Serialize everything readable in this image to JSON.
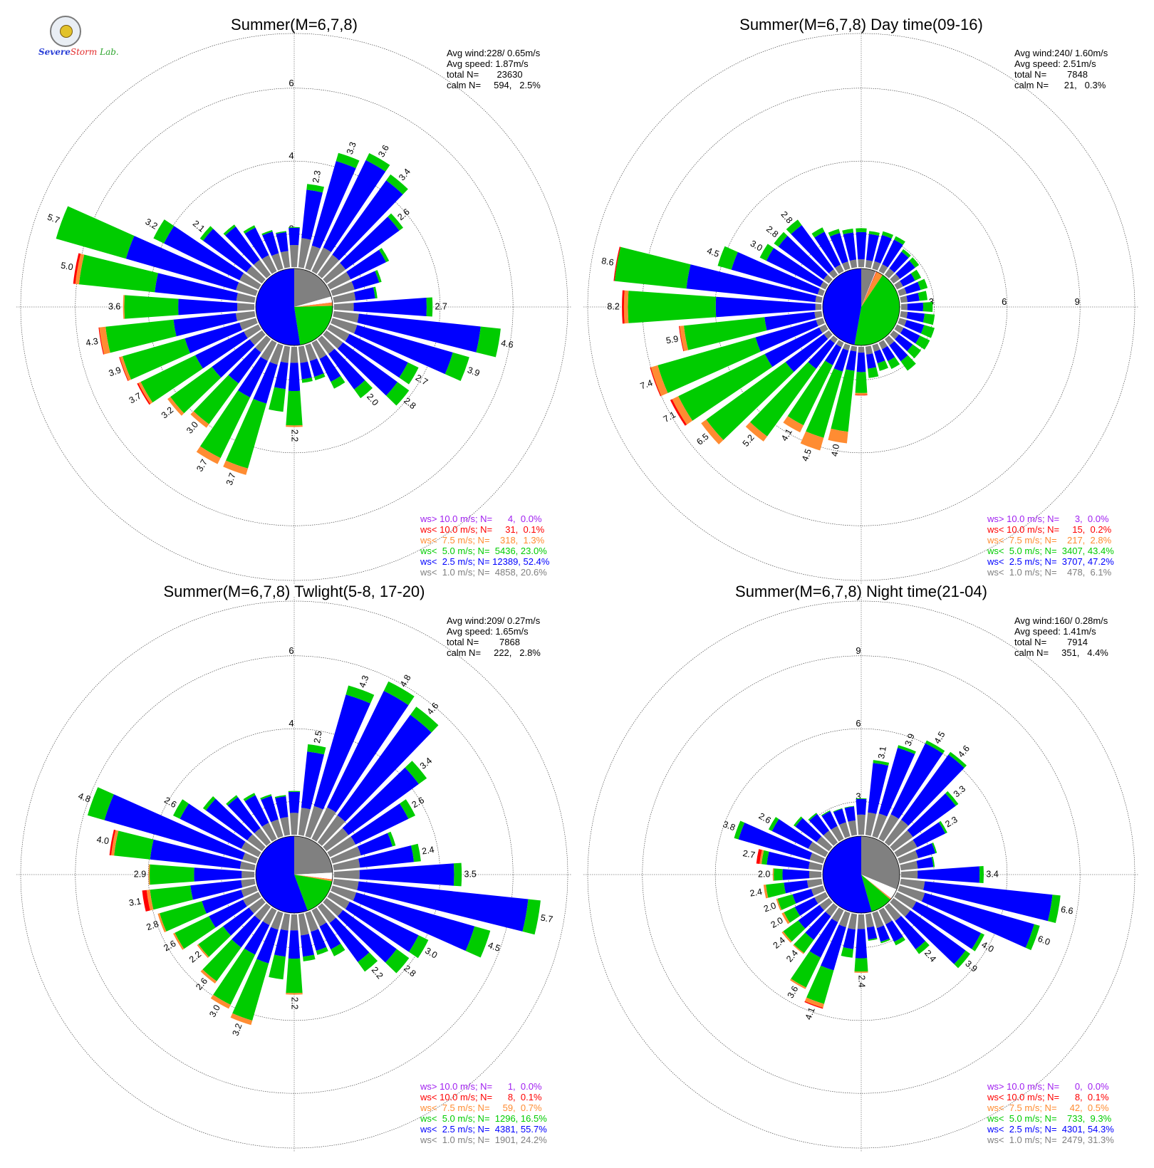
{
  "logo": {
    "text_severe": "Severe",
    "text_storm": "Storm",
    "text_lab": "Lab."
  },
  "colors": {
    "gt10": "#a020f0",
    "lt10": "#ff0000",
    "lt7_5": "#ff8c32",
    "lt5": "#00cc00",
    "lt2_5": "#0000ff",
    "lt1": "#808080"
  },
  "chart_data": [
    {
      "type": "windrose",
      "title": "Summer(M=6,7,8)",
      "rmax": 6,
      "ring_labels": [
        "2",
        "4",
        "6"
      ],
      "rings": [
        2,
        4,
        6
      ],
      "stats": [
        "Avg wind:228/ 0.65m/s",
        "Avg speed: 1.87m/s",
        "total N=       23630",
        "calm N=     594,   2.5%"
      ],
      "legend": [
        {
          "text": "ws> 10.0 m/s; N=      4,  0.0%",
          "color": "#a020f0"
        },
        {
          "text": "ws< 10.0 m/s; N=     31,  0.1%",
          "color": "#ff0000"
        },
        {
          "text": "ws<  7.5 m/s; N=    318,  1.3%",
          "color": "#ff8c32"
        },
        {
          "text": "ws<  5.0 m/s; N=  5436, 23.0%",
          "color": "#00cc00"
        },
        {
          "text": "ws<  2.5 m/s; N= 12389, 52.4%",
          "color": "#0000ff"
        },
        {
          "text": "ws<  1.0 m/s; N=  4858, 20.6%",
          "color": "#808080"
        }
      ],
      "center_pie": {
        "lt1": 20.6,
        "lt2_5": 52.4,
        "lt5": 23.0,
        "lt7_5": 1.3,
        "lt10": 0.1,
        "calm": 2.5
      },
      "directions_deg": [
        0,
        10,
        20,
        30,
        40,
        50,
        60,
        70,
        80,
        90,
        100,
        110,
        120,
        130,
        140,
        150,
        160,
        170,
        180,
        190,
        200,
        210,
        220,
        230,
        240,
        250,
        260,
        270,
        280,
        290,
        300,
        310,
        320,
        330,
        340,
        350
      ],
      "totals": [
        1.1,
        2.3,
        3.3,
        3.6,
        3.4,
        2.6,
        1.8,
        1.4,
        1.2,
        2.7,
        4.6,
        3.9,
        2.7,
        2.8,
        2.0,
        1.4,
        1.0,
        1.0,
        2.2,
        1.8,
        3.7,
        3.7,
        3.0,
        3.2,
        3.7,
        3.9,
        4.3,
        3.6,
        5.0,
        5.7,
        3.2,
        2.1,
        1.7,
        1.4,
        1.1,
        1.0
      ],
      "frac_gray": [
        0.55,
        0.35,
        0.2,
        0.2,
        0.2,
        0.25,
        0.35,
        0.45,
        0.5,
        0.2,
        0.15,
        0.18,
        0.22,
        0.2,
        0.25,
        0.35,
        0.45,
        0.45,
        0.2,
        0.25,
        0.15,
        0.15,
        0.15,
        0.13,
        0.12,
        0.12,
        0.12,
        0.13,
        0.1,
        0.1,
        0.18,
        0.25,
        0.3,
        0.35,
        0.4,
        0.45
      ],
      "frac_blue": [
        0.43,
        0.58,
        0.73,
        0.74,
        0.74,
        0.7,
        0.6,
        0.5,
        0.45,
        0.74,
        0.73,
        0.7,
        0.66,
        0.66,
        0.6,
        0.5,
        0.45,
        0.45,
        0.35,
        0.4,
        0.3,
        0.3,
        0.35,
        0.4,
        0.4,
        0.4,
        0.4,
        0.45,
        0.45,
        0.55,
        0.72,
        0.7,
        0.66,
        0.6,
        0.56,
        0.52
      ],
      "frac_orange": [
        0,
        0,
        0,
        0,
        0,
        0,
        0,
        0,
        0,
        0,
        0,
        0,
        0,
        0,
        0,
        0,
        0,
        0,
        0.02,
        0,
        0.05,
        0.05,
        0.04,
        0.03,
        0.02,
        0.02,
        0.04,
        0.01,
        0.02,
        0,
        0,
        0,
        0,
        0,
        0,
        0
      ],
      "frac_red": [
        0,
        0,
        0,
        0,
        0,
        0,
        0,
        0,
        0,
        0,
        0,
        0,
        0,
        0,
        0,
        0,
        0,
        0,
        0,
        0,
        0,
        0,
        0,
        0,
        0.01,
        0.005,
        0.005,
        0,
        0.012,
        0,
        0,
        0,
        0,
        0,
        0,
        0
      ],
      "labeled_directions": [
        10,
        20,
        30,
        40,
        50,
        90,
        100,
        110,
        120,
        130,
        140,
        180,
        200,
        210,
        220,
        230,
        240,
        250,
        260,
        270,
        280,
        290,
        300,
        310
      ],
      "labels": [
        "2.3",
        "3.3",
        "3.6",
        "3.4",
        "2.6",
        "2.7",
        "4.6",
        "3.9",
        "2.7",
        "2.8",
        "2.0",
        "2.2",
        "3.7",
        "3.7",
        "3.0",
        "3.2",
        "3.7",
        "3.9",
        "4.3",
        "3.6",
        "5.0",
        "5.7",
        "3.2",
        "2.1"
      ]
    },
    {
      "type": "windrose",
      "title": "Summer(M=6,7,8) Day time(09-16)",
      "rmax": 9,
      "ring_labels": [
        "3",
        "6",
        "9"
      ],
      "rings": [
        3,
        6,
        9
      ],
      "stats": [
        "Avg wind:240/ 1.60m/s",
        "Avg speed: 2.51m/s",
        "total N=        7848",
        "calm N=      21,   0.3%"
      ],
      "legend": [
        {
          "text": "ws> 10.0 m/s; N=      3,  0.0%",
          "color": "#a020f0"
        },
        {
          "text": "ws< 10.0 m/s; N=     15,  0.2%",
          "color": "#ff0000"
        },
        {
          "text": "ws<  7.5 m/s; N=    217,  2.8%",
          "color": "#ff8c32"
        },
        {
          "text": "ws<  5.0 m/s; N=  3407, 43.4%",
          "color": "#00cc00"
        },
        {
          "text": "ws<  2.5 m/s; N=  3707, 47.2%",
          "color": "#0000ff"
        },
        {
          "text": "ws<  1.0 m/s; N=    478,  6.1%",
          "color": "#808080"
        }
      ],
      "center_pie": {
        "lt1": 6.1,
        "lt2_5": 47.2,
        "lt5": 43.4,
        "lt7_5": 2.8,
        "lt10": 0.2,
        "calm": 0.3
      },
      "directions_deg": [
        0,
        10,
        20,
        30,
        40,
        50,
        60,
        70,
        80,
        90,
        100,
        110,
        120,
        130,
        140,
        150,
        160,
        170,
        180,
        190,
        200,
        210,
        220,
        230,
        240,
        250,
        260,
        270,
        280,
        290,
        300,
        310,
        320,
        330,
        340,
        350
      ],
      "totals": [
        1.6,
        1.5,
        1.6,
        1.6,
        1.3,
        1.3,
        1.1,
        1.2,
        1.1,
        1.3,
        1.4,
        1.5,
        1.5,
        1.4,
        1.6,
        1.2,
        1.1,
        1.3,
        2.0,
        4.0,
        4.5,
        4.1,
        5.2,
        6.5,
        7.1,
        7.4,
        5.9,
        8.2,
        8.6,
        4.5,
        3.0,
        2.8,
        2.8,
        2.0,
        1.7,
        1.6
      ],
      "frac_gray": [
        0.2,
        0.2,
        0.2,
        0.2,
        0.25,
        0.25,
        0.25,
        0.25,
        0.25,
        0.2,
        0.2,
        0.2,
        0.2,
        0.2,
        0.2,
        0.25,
        0.25,
        0.25,
        0.12,
        0.05,
        0.05,
        0.05,
        0.04,
        0.04,
        0.04,
        0.04,
        0.05,
        0.03,
        0.03,
        0.05,
        0.08,
        0.1,
        0.1,
        0.15,
        0.18,
        0.2
      ],
      "frac_blue": [
        0.7,
        0.72,
        0.7,
        0.7,
        0.65,
        0.6,
        0.5,
        0.5,
        0.45,
        0.5,
        0.5,
        0.5,
        0.5,
        0.5,
        0.5,
        0.45,
        0.45,
        0.45,
        0.4,
        0.2,
        0.2,
        0.2,
        0.25,
        0.3,
        0.35,
        0.35,
        0.35,
        0.5,
        0.62,
        0.82,
        0.82,
        0.82,
        0.8,
        0.75,
        0.72,
        0.7
      ],
      "frac_orange": [
        0,
        0,
        0,
        0,
        0,
        0,
        0,
        0,
        0,
        0,
        0,
        0,
        0,
        0,
        0,
        0,
        0,
        0,
        0.04,
        0.12,
        0.12,
        0.08,
        0.05,
        0.04,
        0.04,
        0.04,
        0.03,
        0.02,
        0,
        0,
        0,
        0,
        0,
        0,
        0,
        0
      ],
      "frac_red": [
        0,
        0,
        0,
        0,
        0,
        0,
        0,
        0,
        0,
        0,
        0,
        0,
        0,
        0,
        0,
        0,
        0,
        0,
        0.01,
        0,
        0,
        0,
        0,
        0,
        0.012,
        0.005,
        0.005,
        0.01,
        0.005,
        0,
        0,
        0,
        0,
        0,
        0,
        0
      ],
      "labeled_directions": [
        190,
        200,
        210,
        220,
        230,
        240,
        250,
        260,
        270,
        280,
        290,
        300,
        310,
        320
      ],
      "labels": [
        "4.0",
        "4.5",
        "4.1",
        "5.2",
        "6.5",
        "7.1",
        "7.4",
        "5.9",
        "8.2",
        "8.6",
        "4.5",
        "3.0",
        "2.8",
        "2.8"
      ]
    },
    {
      "type": "windrose",
      "title": "Summer(M=6,7,8) Twlight(5-8, 17-20)",
      "rmax": 6,
      "ring_labels": [
        "2",
        "4",
        "6"
      ],
      "rings": [
        2,
        4,
        6
      ],
      "stats": [
        "Avg wind:209/ 0.27m/s",
        "Avg speed: 1.65m/s",
        "total N=        7868",
        "calm N=     222,   2.8%"
      ],
      "legend": [
        {
          "text": "ws> 10.0 m/s; N=      1,  0.0%",
          "color": "#a020f0"
        },
        {
          "text": "ws< 10.0 m/s; N=      8,  0.1%",
          "color": "#ff0000"
        },
        {
          "text": "ws<  7.5 m/s; N=     59,  0.7%",
          "color": "#ff8c32"
        },
        {
          "text": "ws<  5.0 m/s; N=  1296, 16.5%",
          "color": "#00cc00"
        },
        {
          "text": "ws<  2.5 m/s; N=  4381, 55.7%",
          "color": "#0000ff"
        },
        {
          "text": "ws<  1.0 m/s; N=  1901, 24.2%",
          "color": "#808080"
        }
      ],
      "center_pie": {
        "lt1": 24.2,
        "lt2_5": 55.7,
        "lt5": 16.5,
        "lt7_5": 0.7,
        "lt10": 0.1,
        "calm": 2.8
      },
      "directions_deg": [
        0,
        10,
        20,
        30,
        40,
        50,
        60,
        70,
        80,
        90,
        100,
        110,
        120,
        130,
        140,
        150,
        160,
        170,
        180,
        190,
        200,
        210,
        220,
        230,
        240,
        250,
        260,
        270,
        280,
        290,
        300,
        310,
        320,
        330,
        340,
        350
      ],
      "totals": [
        1.2,
        2.5,
        4.3,
        4.8,
        4.6,
        3.4,
        2.6,
        1.8,
        2.4,
        3.5,
        5.7,
        4.5,
        3.0,
        2.8,
        2.2,
        1.4,
        1.2,
        1.3,
        2.2,
        1.8,
        3.2,
        3.0,
        2.6,
        2.2,
        2.6,
        2.8,
        3.1,
        2.9,
        4.0,
        4.8,
        2.6,
        2.0,
        1.6,
        1.4,
        1.2,
        1.1
      ],
      "frac_gray": [
        0.5,
        0.3,
        0.2,
        0.2,
        0.2,
        0.22,
        0.3,
        0.45,
        0.3,
        0.2,
        0.12,
        0.15,
        0.2,
        0.2,
        0.25,
        0.35,
        0.45,
        0.45,
        0.2,
        0.25,
        0.15,
        0.15,
        0.18,
        0.2,
        0.18,
        0.15,
        0.12,
        0.12,
        0.1,
        0.08,
        0.2,
        0.25,
        0.3,
        0.35,
        0.4,
        0.45
      ],
      "frac_blue": [
        0.48,
        0.62,
        0.74,
        0.74,
        0.74,
        0.7,
        0.62,
        0.5,
        0.62,
        0.74,
        0.82,
        0.75,
        0.7,
        0.65,
        0.6,
        0.5,
        0.45,
        0.45,
        0.35,
        0.4,
        0.3,
        0.3,
        0.35,
        0.4,
        0.4,
        0.4,
        0.45,
        0.45,
        0.62,
        0.82,
        0.72,
        0.7,
        0.66,
        0.6,
        0.56,
        0.52
      ],
      "frac_orange": [
        0,
        0,
        0,
        0,
        0,
        0,
        0,
        0,
        0,
        0,
        0,
        0,
        0,
        0,
        0,
        0,
        0,
        0,
        0.02,
        0,
        0.04,
        0.04,
        0.03,
        0.02,
        0.02,
        0.02,
        0.03,
        0.01,
        0.02,
        0,
        0,
        0,
        0,
        0,
        0,
        0
      ],
      "frac_red": [
        0,
        0,
        0,
        0,
        0,
        0,
        0,
        0,
        0,
        0,
        0,
        0,
        0,
        0,
        0,
        0,
        0,
        0,
        0,
        0,
        0,
        0,
        0,
        0,
        0,
        0,
        0.04,
        0,
        0.012,
        0,
        0,
        0,
        0,
        0,
        0,
        0
      ],
      "labeled_directions": [
        10,
        20,
        30,
        40,
        50,
        60,
        80,
        90,
        100,
        110,
        120,
        130,
        140,
        180,
        200,
        210,
        220,
        230,
        240,
        250,
        260,
        270,
        280,
        290,
        300
      ],
      "labels": [
        "2.5",
        "4.3",
        "4.8",
        "4.6",
        "3.4",
        "2.6",
        "2.4",
        "3.5",
        "5.7",
        "4.5",
        "3.0",
        "2.8",
        "2.2",
        "2.2",
        "3.2",
        "3.0",
        "2.6",
        "2.2",
        "2.6",
        "2.8",
        "3.1",
        "2.9",
        "4.0",
        "4.8",
        "2.6"
      ]
    },
    {
      "type": "windrose",
      "title": "Summer(M=6,7,8) Night time(21-04)",
      "rmax": 9,
      "ring_labels": [
        "3",
        "6",
        "9"
      ],
      "rings": [
        3,
        6,
        9
      ],
      "stats": [
        "Avg wind:160/ 0.28m/s",
        "Avg speed: 1.41m/s",
        "total N=        7914",
        "calm N=     351,   4.4%"
      ],
      "legend": [
        {
          "text": "ws> 10.0 m/s; N=      0,  0.0%",
          "color": "#a020f0"
        },
        {
          "text": "ws< 10.0 m/s; N=      8,  0.1%",
          "color": "#ff0000"
        },
        {
          "text": "ws<  7.5 m/s; N=     42,  0.5%",
          "color": "#ff8c32"
        },
        {
          "text": "ws<  5.0 m/s; N=    733,  9.3%",
          "color": "#00cc00"
        },
        {
          "text": "ws<  2.5 m/s; N=  4301, 54.3%",
          "color": "#0000ff"
        },
        {
          "text": "ws<  1.0 m/s; N=  2479, 31.3%",
          "color": "#808080"
        }
      ],
      "center_pie": {
        "lt1": 31.3,
        "lt2_5": 54.3,
        "lt5": 9.3,
        "lt7_5": 0.5,
        "lt10": 0.1,
        "calm": 4.4
      },
      "directions_deg": [
        0,
        10,
        20,
        30,
        40,
        50,
        60,
        70,
        80,
        90,
        100,
        110,
        120,
        130,
        140,
        150,
        160,
        170,
        180,
        190,
        200,
        210,
        220,
        230,
        240,
        250,
        260,
        270,
        280,
        290,
        300,
        310,
        320,
        330,
        340,
        350
      ],
      "totals": [
        1.5,
        3.1,
        3.9,
        4.5,
        4.6,
        3.3,
        2.3,
        1.6,
        1.4,
        3.4,
        6.6,
        6.0,
        4.0,
        3.9,
        2.4,
        1.6,
        1.3,
        1.1,
        2.4,
        1.8,
        4.1,
        3.6,
        2.4,
        2.4,
        2.0,
        2.0,
        2.4,
        2.0,
        2.7,
        3.8,
        2.6,
        1.8,
        1.5,
        1.3,
        1.2,
        1.2
      ],
      "frac_gray": [
        0.55,
        0.3,
        0.25,
        0.25,
        0.25,
        0.3,
        0.4,
        0.5,
        0.5,
        0.2,
        0.15,
        0.18,
        0.22,
        0.22,
        0.3,
        0.4,
        0.5,
        0.5,
        0.25,
        0.35,
        0.15,
        0.15,
        0.2,
        0.2,
        0.25,
        0.25,
        0.25,
        0.25,
        0.2,
        0.15,
        0.3,
        0.35,
        0.4,
        0.45,
        0.5,
        0.5
      ],
      "frac_blue": [
        0.43,
        0.66,
        0.72,
        0.72,
        0.72,
        0.66,
        0.56,
        0.46,
        0.46,
        0.75,
        0.8,
        0.78,
        0.74,
        0.72,
        0.6,
        0.5,
        0.45,
        0.45,
        0.5,
        0.45,
        0.45,
        0.45,
        0.5,
        0.45,
        0.45,
        0.4,
        0.4,
        0.55,
        0.64,
        0.8,
        0.64,
        0.6,
        0.56,
        0.52,
        0.48,
        0.48
      ],
      "frac_orange": [
        0,
        0,
        0,
        0,
        0,
        0,
        0,
        0,
        0,
        0,
        0,
        0,
        0,
        0,
        0,
        0,
        0,
        0,
        0.02,
        0,
        0.04,
        0.02,
        0.02,
        0.03,
        0.05,
        0.03,
        0.04,
        0.02,
        0.03,
        0,
        0,
        0,
        0,
        0,
        0,
        0
      ],
      "frac_red": [
        0,
        0,
        0,
        0,
        0,
        0,
        0,
        0,
        0,
        0,
        0,
        0,
        0,
        0,
        0,
        0,
        0,
        0,
        0,
        0,
        0.01,
        0,
        0,
        0,
        0,
        0,
        0,
        0,
        0.05,
        0,
        0,
        0,
        0,
        0,
        0,
        0
      ],
      "labeled_directions": [
        10,
        20,
        30,
        40,
        50,
        60,
        90,
        100,
        110,
        120,
        130,
        140,
        180,
        200,
        210,
        220,
        230,
        240,
        250,
        260,
        270,
        280,
        290,
        300
      ],
      "labels": [
        "3.1",
        "3.9",
        "4.5",
        "4.6",
        "3.3",
        "2.3",
        "3.4",
        "6.6",
        "6.0",
        "4.0",
        "3.9",
        "2.4",
        "2.4",
        "4.1",
        "3.6",
        "2.4",
        "2.4",
        "2.0",
        "2.0",
        "2.4",
        "2.0",
        "2.7",
        "3.8",
        "2.6"
      ]
    }
  ]
}
